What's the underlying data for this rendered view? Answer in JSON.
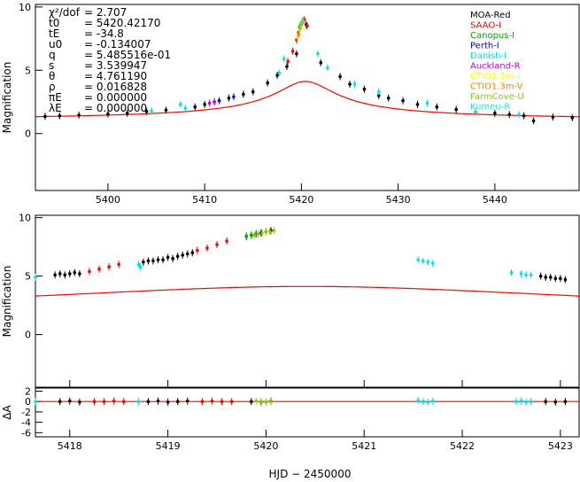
{
  "chart_data": [
    {
      "type": "scatter",
      "panel": "full light curve",
      "ylabel": "Magnification",
      "xlim": [
        5392.5,
        5448.8
      ],
      "ylim": [
        -4.5,
        10.2
      ],
      "x_ticks": [
        5400,
        5410,
        5420,
        5430,
        5440
      ],
      "y_ticks": [
        0,
        5,
        10
      ],
      "parameters": [
        {
          "name": "χ²/dof",
          "value": "2.707"
        },
        {
          "name": "t0",
          "value": "5420.42170"
        },
        {
          "name": "tE",
          "value": "-34.8"
        },
        {
          "name": "u0",
          "value": "-0.134007"
        },
        {
          "name": "q",
          "value": "5.485516e-01"
        },
        {
          "name": "s",
          "value": "3.539947"
        },
        {
          "name": "θ",
          "value": "4.761190"
        },
        {
          "name": "ρ",
          "value": "0.016828"
        },
        {
          "name": "πE",
          "value": "0.000000"
        },
        {
          "name": "λE",
          "value": "0.000000"
        }
      ],
      "legend_position": "top-right",
      "series": [
        {
          "name": "MOA-Red",
          "color": "#000000",
          "x": [
            5393.5,
            5395,
            5397,
            5400,
            5402,
            5404,
            5406,
            5409,
            5410,
            5411,
            5412.5,
            5414,
            5415,
            5416.5,
            5417.5,
            5418.5,
            5419.5,
            5420.5,
            5422,
            5424,
            5425,
            5426.5,
            5428,
            5429,
            5430.5,
            5432,
            5434,
            5436,
            5438,
            5440,
            5441.5,
            5443,
            5444,
            5446,
            5448
          ],
          "y": [
            1.35,
            1.4,
            1.45,
            1.55,
            1.6,
            1.75,
            1.85,
            2.1,
            2.3,
            2.5,
            2.8,
            3.1,
            3.3,
            4.0,
            4.6,
            5.3,
            6.3,
            8.6,
            5.6,
            4.5,
            3.9,
            3.5,
            3.0,
            2.8,
            2.6,
            2.3,
            2.1,
            1.9,
            1.7,
            1.6,
            1.5,
            1.4,
            1.0,
            1.3,
            1.25
          ]
        },
        {
          "name": "SAAO-I",
          "color": "#ff0000",
          "x": [
            5418.6,
            5419.1,
            5419.5,
            5419.7,
            5420.1,
            5420.3,
            5420.6
          ],
          "y": [
            5.7,
            6.5,
            7.4,
            8.0,
            8.8,
            9.0,
            8.5
          ]
        },
        {
          "name": "Canopus-I",
          "color": "#00aa00",
          "x": [
            5419.8,
            5419.9,
            5420.0
          ],
          "y": [
            8.4,
            8.6,
            8.7
          ]
        },
        {
          "name": "Perth-I",
          "color": "#0000ff",
          "x": [
            5411.5,
            5413
          ],
          "y": [
            2.6,
            2.9
          ]
        },
        {
          "name": "Danish-I",
          "color": "#00e5e5",
          "x": [
            5404.5,
            5407.5,
            5408,
            5417.7,
            5418.2,
            5421.7,
            5422.7,
            5425.5,
            5428,
            5433,
            5438,
            5442.5
          ],
          "y": [
            1.8,
            2.3,
            2.0,
            4.8,
            5.9,
            6.3,
            5.2,
            3.9,
            3.3,
            2.4,
            1.7,
            1.5
          ]
        },
        {
          "name": "Auckland-R",
          "color": "#cc00cc",
          "x": [
            5410.5,
            5411
          ],
          "y": [
            2.4,
            2.5
          ]
        },
        {
          "name": "CTIO1.3m-I",
          "color": "#ffff00",
          "x": [
            5419.6,
            5419.8,
            5420.0
          ],
          "y": [
            7.6,
            8.2,
            8.7
          ]
        },
        {
          "name": "CTIO1.3m-V",
          "color": "#ff8000",
          "x": [
            5419.7,
            5420.2
          ],
          "y": [
            7.8,
            8.9
          ]
        },
        {
          "name": "FarmCove-U",
          "color": "#88cc00",
          "x": [
            5419.85,
            5419.95,
            5420.05
          ],
          "y": [
            8.3,
            8.6,
            8.8
          ]
        },
        {
          "name": "Kumeu-R",
          "color": "#40e0c0",
          "x": [
            5420.1
          ],
          "y": [
            8.9
          ]
        }
      ],
      "model": {
        "name": "model",
        "color": "#ff0000"
      }
    },
    {
      "type": "scatter",
      "panel": "zoom on peak",
      "ylabel": "Magnification",
      "xlim": [
        5417.65,
        5423.2
      ],
      "ylim": [
        -4.5,
        10.2
      ],
      "y_ticks": [
        0,
        5,
        10
      ],
      "series": [
        {
          "name": "MOA-Red",
          "color": "#000000",
          "x": [
            5417.85,
            5417.9,
            5417.95,
            5418.0,
            5418.05,
            5418.1,
            5418.75,
            5418.8,
            5418.85,
            5418.9,
            5418.95,
            5419.0,
            5419.05,
            5419.1,
            5419.15,
            5419.2,
            5419.25,
            5419.8,
            5419.85,
            5419.9,
            5419.95,
            5420.0,
            5420.05,
            5422.8,
            5422.85,
            5422.9,
            5422.95,
            5423.0,
            5423.05
          ],
          "y": [
            5.1,
            5.2,
            5.1,
            5.2,
            5.3,
            5.2,
            6.2,
            6.3,
            6.3,
            6.4,
            6.4,
            6.6,
            6.5,
            6.7,
            6.8,
            6.9,
            7.0,
            8.4,
            8.5,
            8.6,
            8.7,
            8.8,
            8.9,
            5.0,
            4.9,
            4.9,
            4.8,
            4.8,
            4.7
          ]
        },
        {
          "name": "SAAO-I",
          "color": "#ff0000",
          "x": [
            5418.2,
            5418.3,
            5418.4,
            5418.5,
            5419.3,
            5419.4,
            5419.5,
            5419.6
          ],
          "y": [
            5.4,
            5.6,
            5.8,
            6.0,
            7.2,
            7.4,
            7.7,
            8.0
          ]
        },
        {
          "name": "Canopus-I",
          "color": "#00aa00",
          "x": [
            5419.8,
            5419.85,
            5419.9
          ],
          "y": [
            8.4,
            8.5,
            8.6
          ]
        },
        {
          "name": "Danish-I",
          "color": "#00e5e5",
          "x": [
            5417.65,
            5418.7,
            5418.72,
            5421.55,
            5421.6,
            5421.65,
            5421.7,
            5422.5,
            5422.6,
            5422.65,
            5422.7
          ],
          "y": [
            4.9,
            6.0,
            5.8,
            6.4,
            6.3,
            6.2,
            6.1,
            5.3,
            5.2,
            5.1,
            5.1
          ]
        },
        {
          "name": "FarmCove-U",
          "color": "#88cc00",
          "x": [
            5419.88,
            5419.92,
            5419.96,
            5420.0,
            5420.04,
            5420.08
          ],
          "y": [
            8.5,
            8.6,
            8.7,
            8.8,
            8.8,
            8.9
          ]
        }
      ],
      "model": {
        "name": "model",
        "color": "#ff0000"
      }
    },
    {
      "type": "scatter",
      "panel": "residuals",
      "ylabel": "ΔA",
      "xlabel": "HJD − 2450000",
      "xlim": [
        5417.65,
        5423.2
      ],
      "ylim": [
        -6.8,
        2.6
      ],
      "x_ticks": [
        5418,
        5419,
        5420,
        5421,
        5422,
        5423
      ],
      "y_ticks": [
        -6,
        -4,
        -2,
        0,
        2
      ],
      "series": [
        {
          "name": "MOA-Red",
          "color": "#000000",
          "x": [
            5417.9,
            5418.0,
            5418.1,
            5418.8,
            5418.9,
            5419.0,
            5419.1,
            5419.2,
            5419.85,
            5419.95,
            5420.05,
            5422.85,
            5422.95,
            5423.05
          ],
          "y": [
            0.0,
            0.1,
            -0.1,
            0.0,
            0.1,
            -0.1,
            0.0,
            0.1,
            0.0,
            -0.1,
            0.1,
            0.0,
            -0.1,
            0.0
          ]
        },
        {
          "name": "SAAO-I",
          "color": "#ff0000",
          "x": [
            5418.25,
            5418.35,
            5418.45,
            5418.55,
            5419.35,
            5419.45,
            5419.55,
            5419.65
          ],
          "y": [
            0.0,
            0.0,
            0.1,
            0.0,
            0.0,
            0.1,
            0.0,
            0.0
          ]
        },
        {
          "name": "Danish-I",
          "color": "#00e5e5",
          "x": [
            5417.65,
            5418.7,
            5421.55,
            5421.6,
            5421.65,
            5421.7,
            5422.55,
            5422.6,
            5422.65,
            5422.7
          ],
          "y": [
            0.0,
            0.0,
            0.2,
            0.0,
            -0.1,
            0.1,
            0.0,
            0.1,
            -0.1,
            0.0
          ]
        },
        {
          "name": "FarmCove-U",
          "color": "#88cc00",
          "x": [
            5419.9,
            5419.95,
            5420.0,
            5420.05
          ],
          "y": [
            0.1,
            0.0,
            -0.1,
            0.0
          ]
        }
      ],
      "model": {
        "name": "model",
        "color": "#ff0000"
      }
    }
  ]
}
